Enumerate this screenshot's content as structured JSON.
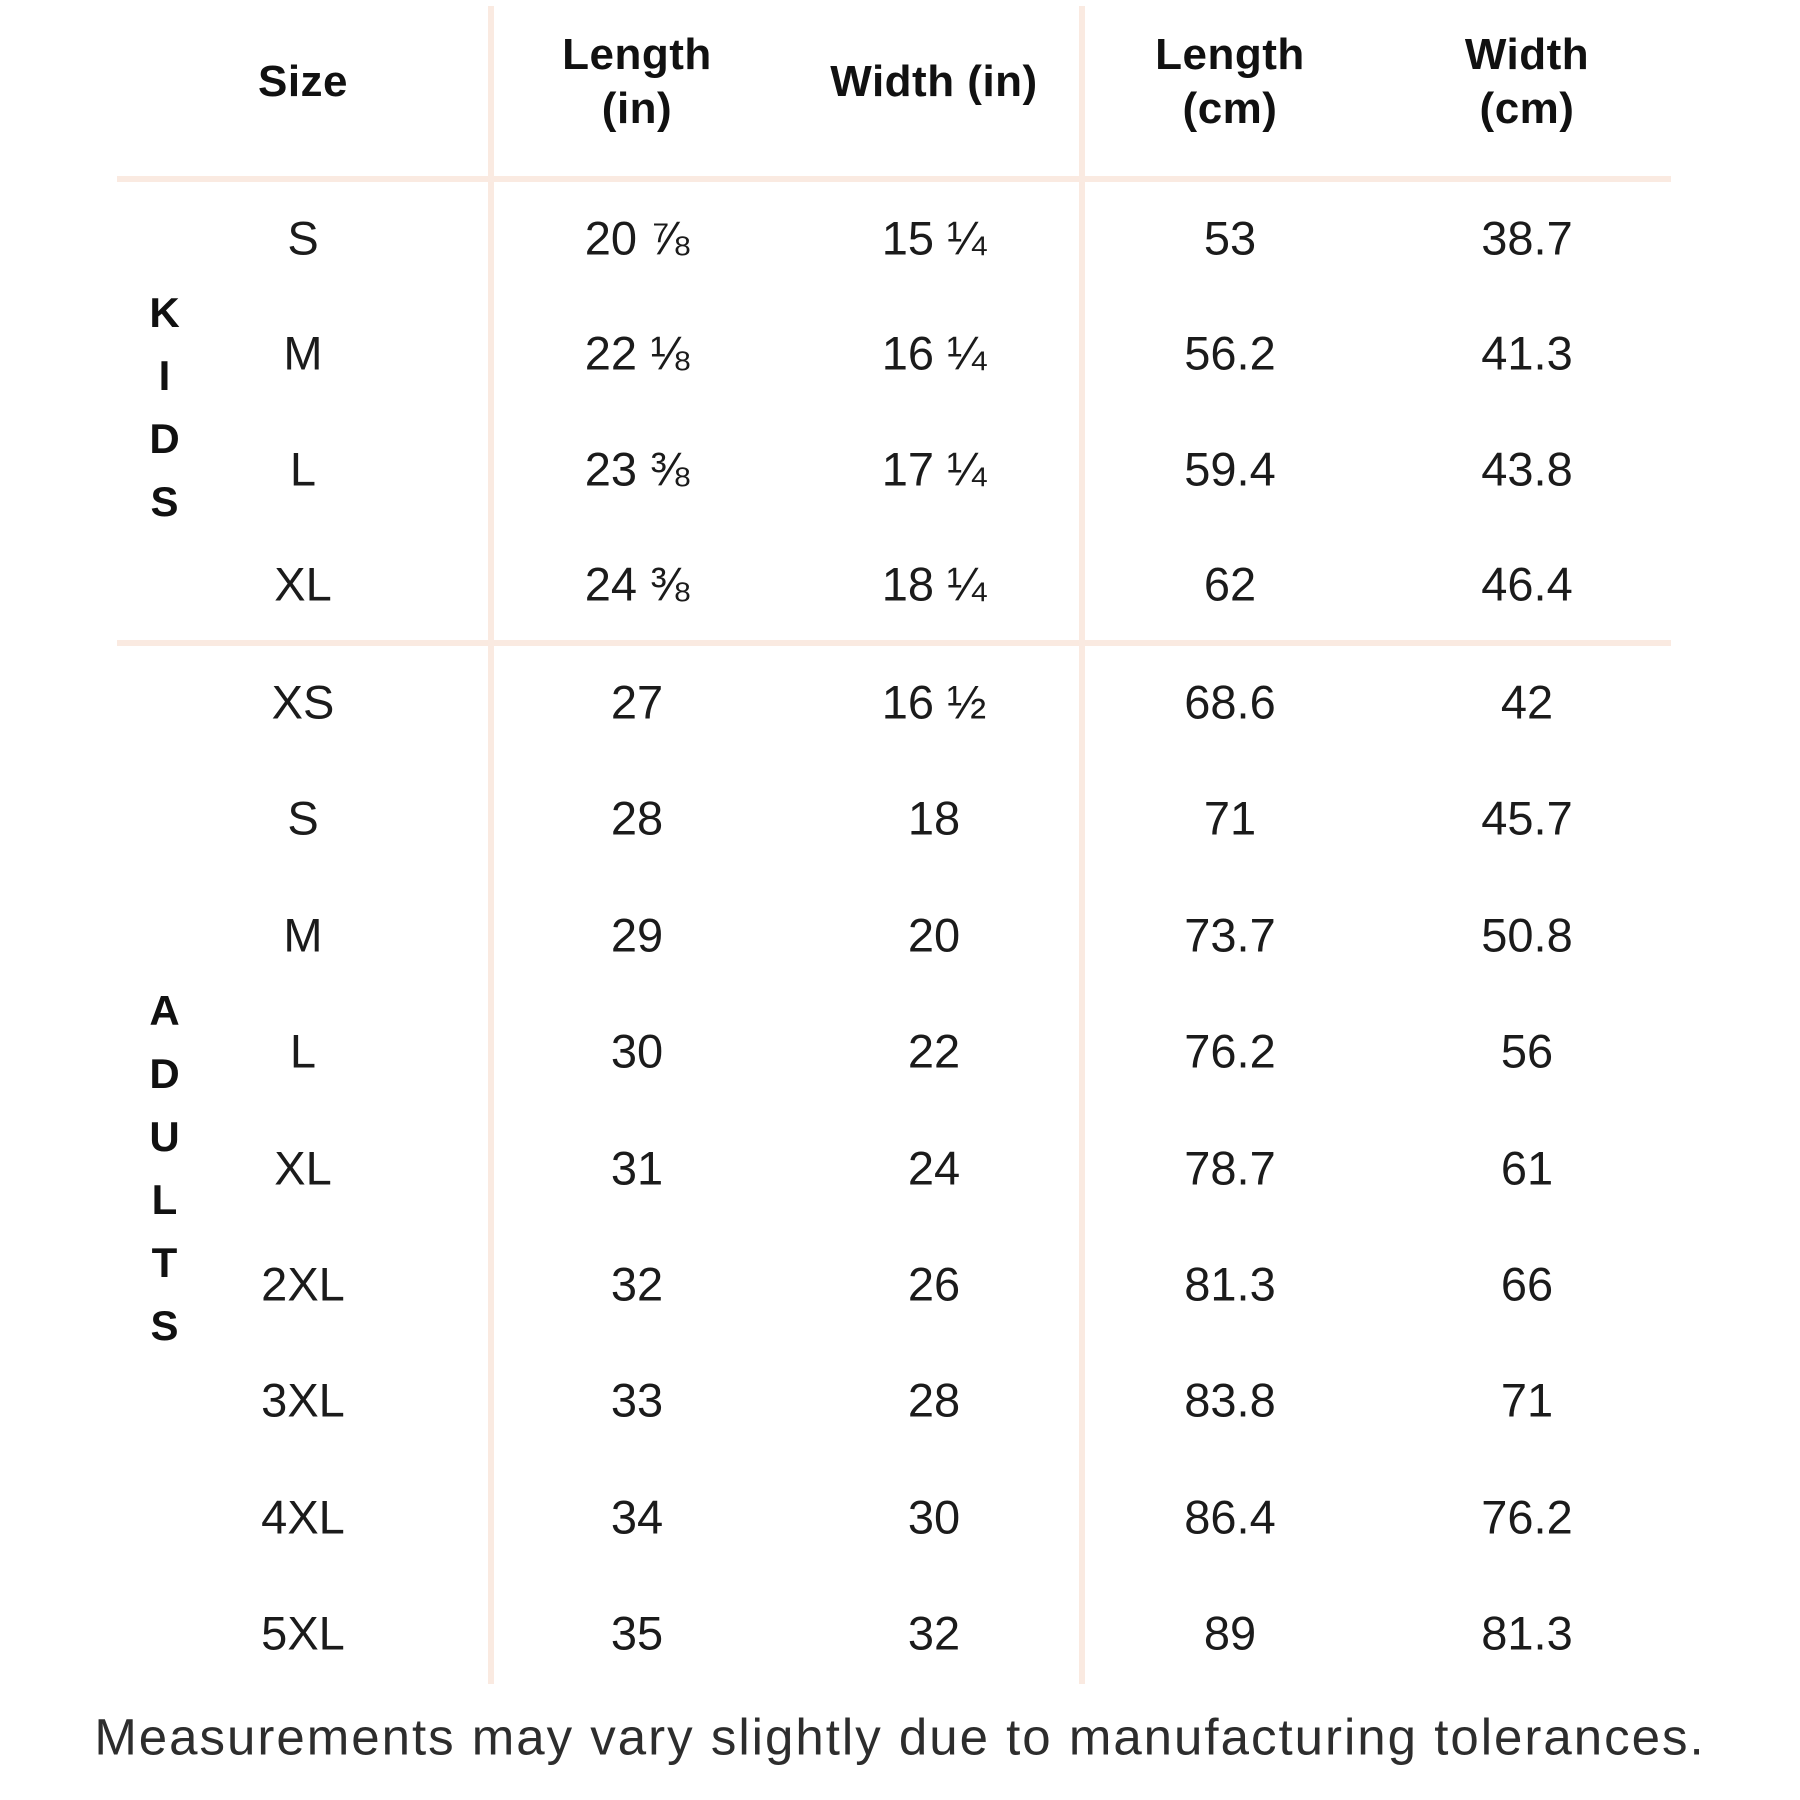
{
  "colors": {
    "background": "#FFFFFF",
    "divider": "#FAEAE1",
    "text": "#1B1B1B",
    "heading": "#111111",
    "footer_text": "#2D2D2D"
  },
  "table": {
    "headers": [
      {
        "line1": "Size",
        "line2": ""
      },
      {
        "line1": "Length",
        "line2": "(in)"
      },
      {
        "line1": "Width (in)",
        "line2": ""
      },
      {
        "line1": "Length",
        "line2": "(cm)"
      },
      {
        "line1": "Width",
        "line2": "(cm)"
      }
    ],
    "column_keys": [
      "size",
      "length_in",
      "width_in",
      "length_cm",
      "width_cm"
    ],
    "groups": [
      {
        "label": "KIDS",
        "rows": [
          {
            "size": "S",
            "length_in": "20 ⅞",
            "width_in": "15 ¼",
            "length_cm": "53",
            "width_cm": "38.7"
          },
          {
            "size": "M",
            "length_in": "22 ⅛",
            "width_in": "16 ¼",
            "length_cm": "56.2",
            "width_cm": "41.3"
          },
          {
            "size": "L",
            "length_in": "23 ⅜",
            "width_in": "17 ¼",
            "length_cm": "59.4",
            "width_cm": "43.8"
          },
          {
            "size": "XL",
            "length_in": "24 ⅜",
            "width_in": "18 ¼",
            "length_cm": "62",
            "width_cm": "46.4"
          }
        ]
      },
      {
        "label": "ADULTS",
        "rows": [
          {
            "size": "XS",
            "length_in": "27",
            "width_in": "16 ½",
            "length_cm": "68.6",
            "width_cm": "42"
          },
          {
            "size": "S",
            "length_in": "28",
            "width_in": "18",
            "length_cm": "71",
            "width_cm": "45.7"
          },
          {
            "size": "M",
            "length_in": "29",
            "width_in": "20",
            "length_cm": "73.7",
            "width_cm": "50.8"
          },
          {
            "size": "L",
            "length_in": "30",
            "width_in": "22",
            "length_cm": "76.2",
            "width_cm": "56"
          },
          {
            "size": "XL",
            "length_in": "31",
            "width_in": "24",
            "length_cm": "78.7",
            "width_cm": "61"
          },
          {
            "size": "2XL",
            "length_in": "32",
            "width_in": "26",
            "length_cm": "81.3",
            "width_cm": "66"
          },
          {
            "size": "3XL",
            "length_in": "33",
            "width_in": "28",
            "length_cm": "83.8",
            "width_cm": "71"
          },
          {
            "size": "4XL",
            "length_in": "34",
            "width_in": "30",
            "length_cm": "86.4",
            "width_cm": "76.2"
          },
          {
            "size": "5XL",
            "length_in": "35",
            "width_in": "32",
            "length_cm": "89",
            "width_cm": "81.3"
          }
        ]
      }
    ]
  },
  "footer": {
    "note": "Measurements may vary slightly due to manufacturing tolerances."
  }
}
